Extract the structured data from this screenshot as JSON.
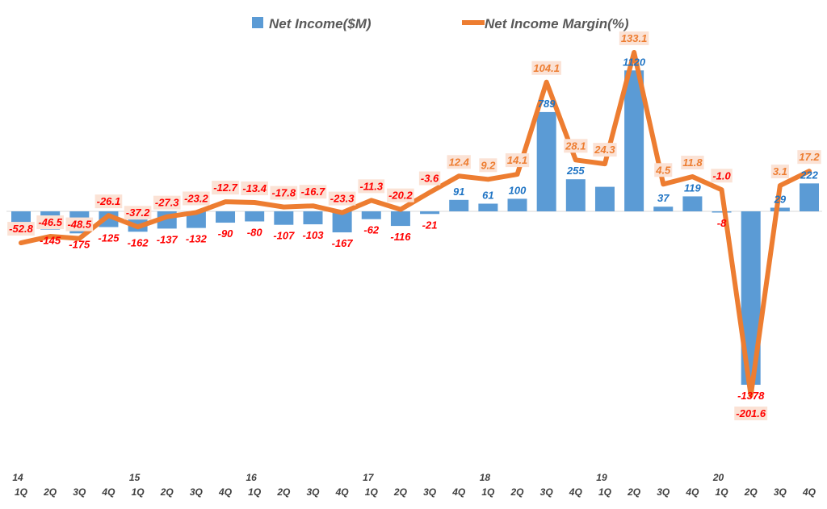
{
  "chart_data": {
    "type": "bar+line",
    "title": "",
    "legend_placement": "top",
    "grid": false,
    "categories": [
      "1Q",
      "2Q",
      "3Q",
      "4Q",
      "1Q",
      "2Q",
      "3Q",
      "4Q",
      "1Q",
      "2Q",
      "3Q",
      "4Q",
      "1Q",
      "2Q",
      "3Q",
      "4Q",
      "1Q",
      "2Q",
      "3Q",
      "4Q",
      "1Q",
      "2Q",
      "3Q",
      "4Q",
      "1Q",
      "2Q",
      "3Q",
      "4Q"
    ],
    "year_labels": [
      "14",
      "",
      "",
      "",
      "15",
      "",
      "",
      "",
      "16",
      "",
      "",
      "",
      "17",
      "",
      "",
      "",
      "18",
      "",
      "",
      "",
      "19",
      "",
      "",
      "",
      "20",
      "",
      "",
      ""
    ],
    "series": [
      {
        "name": "Net Income($M)",
        "type": "bar",
        "color": "#5b9bd5",
        "values": [
          -130,
          -145,
          -175,
          -125,
          -162,
          -137,
          -132,
          -90,
          -80,
          -107,
          -103,
          -167,
          -62,
          -116,
          -21,
          91,
          61,
          100,
          789,
          255,
          195,
          1120,
          37,
          119,
          -8,
          -1378,
          29,
          222
        ],
        "labels": [
          "",
          "-145",
          "-175",
          "-125",
          "-162",
          "-137",
          "-132",
          "-90",
          "-80",
          "-107",
          "-103",
          "-167",
          "-62",
          "-116",
          "-21",
          "91",
          "61",
          "100",
          "789",
          "255",
          "",
          "1120",
          "37",
          "119",
          "-8",
          "-1378",
          "29",
          "222"
        ]
      },
      {
        "name": "Net Income Margin(%)",
        "type": "line",
        "color": "#ed7d31",
        "values": [
          -52.8,
          -46.5,
          -48.5,
          -26.1,
          -37.2,
          -27.3,
          -23.2,
          -12.7,
          -13.4,
          -17.8,
          -16.7,
          -23.3,
          -11.3,
          -20.2,
          -3.6,
          12.4,
          9.2,
          14.1,
          104.1,
          28.1,
          24.3,
          133.1,
          4.5,
          11.8,
          -1.0,
          -201.6,
          3.1,
          17.2
        ],
        "labels": [
          "-52.8",
          "-46.5",
          "-48.5",
          "-26.1",
          "-37.2",
          "-27.3",
          "-23.2",
          "-12.7",
          "-13.4",
          "-17.8",
          "-16.7",
          "-23.3",
          "-11.3",
          "-20.2",
          "-3.6",
          "12.4",
          "9.2",
          "14.1",
          "104.1",
          "28.1",
          "24.3",
          "133.1",
          "4.5",
          "11.8",
          "-1.0",
          "-201.6",
          "3.1",
          "17.2"
        ]
      }
    ],
    "colors": {
      "positive_label": "#1f74c4",
      "negative_label": "#ff0000",
      "margin_positive_label": "#ed7d31",
      "margin_label_bg": "#fbe2d5",
      "axis": "#d9d9d9"
    }
  }
}
